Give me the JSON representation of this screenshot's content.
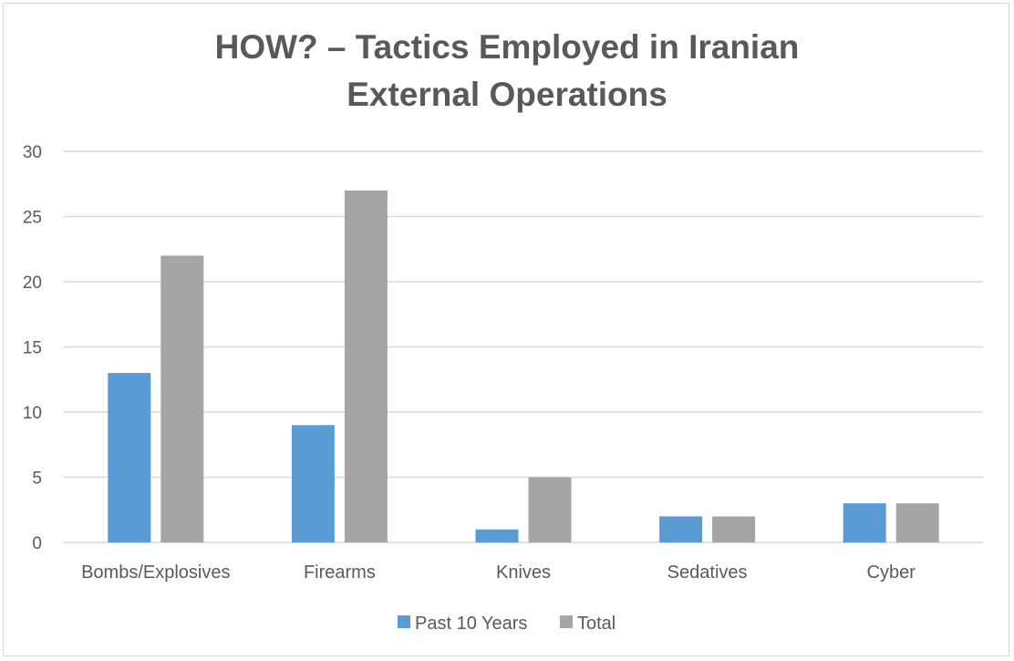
{
  "chart_data": {
    "type": "bar",
    "title_lines": [
      "HOW? – Tactics Employed in Iranian",
      "External Operations"
    ],
    "categories": [
      "Bombs/Explosives",
      "Firearms",
      "Knives",
      "Sedatives",
      "Cyber"
    ],
    "series": [
      {
        "name": "Past 10 Years",
        "color": "#5b9bd5",
        "values": [
          13,
          9,
          1,
          2,
          3
        ]
      },
      {
        "name": "Total",
        "color": "#a5a5a5",
        "values": [
          22,
          27,
          5,
          2,
          3
        ]
      }
    ],
    "ylim": [
      0,
      30
    ],
    "yticks": [
      0,
      5,
      10,
      15,
      20,
      25,
      30
    ],
    "grid": true,
    "legend_position": "bottom"
  }
}
